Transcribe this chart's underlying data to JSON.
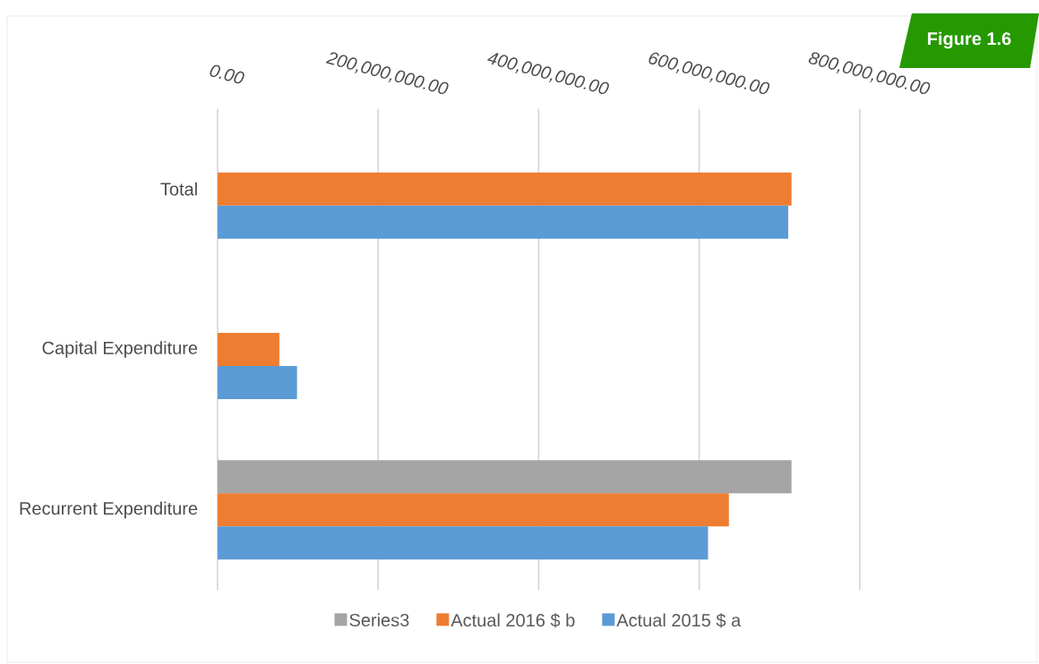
{
  "chart_data": {
    "type": "bar",
    "orientation": "horizontal",
    "categories": [
      "Total",
      "Capital Expenditure",
      "Recurrent Expenditure"
    ],
    "series": [
      {
        "name": "Series3",
        "color": "#a5a5a5",
        "values": [
          null,
          null,
          715000000
        ]
      },
      {
        "name": "Actual 2016 $ b",
        "color": "#ed7d31",
        "values": [
          715000000,
          77000000,
          637000000
        ]
      },
      {
        "name": "Actual 2015 $ a",
        "color": "#5b9bd5",
        "values": [
          711000000,
          99000000,
          611000000
        ]
      }
    ],
    "xlim": [
      0,
      800000000
    ],
    "xticks": [
      {
        "value": 0,
        "label": "0.00"
      },
      {
        "value": 200000000,
        "label": "200,000,000.00"
      },
      {
        "value": 400000000,
        "label": "400,000,000.00"
      },
      {
        "value": 600000000,
        "label": "600,000,000.00"
      },
      {
        "value": 800000000,
        "label": "800,000,000.00"
      }
    ],
    "grid": "x",
    "legend": "bottom",
    "annotations": [
      "Figure 1.6"
    ]
  }
}
